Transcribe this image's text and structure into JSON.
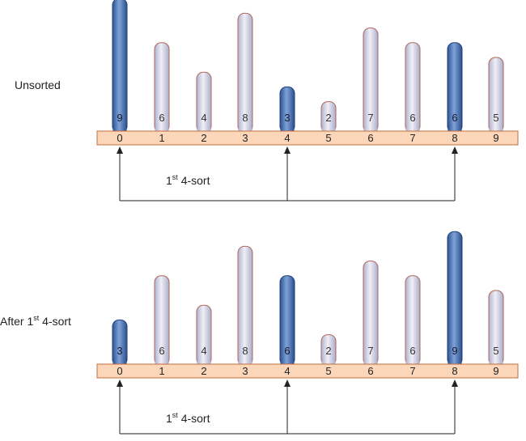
{
  "panels": [
    {
      "label": "Unsorted",
      "label_sup": "",
      "label_suffix": "",
      "values": [
        9,
        6,
        4,
        8,
        3,
        2,
        7,
        6,
        6,
        5
      ],
      "highlighted": [
        0,
        4,
        8
      ],
      "indices": [
        "0",
        "1",
        "2",
        "3",
        "4",
        "5",
        "6",
        "7",
        "8",
        "9"
      ],
      "arrow_label": "1",
      "arrow_label_sup": "st",
      "arrow_label_suffix": " 4-sort"
    },
    {
      "label": "After 1",
      "label_sup": "st",
      "label_suffix": " 4-sort",
      "values": [
        3,
        6,
        4,
        8,
        6,
        2,
        7,
        6,
        9,
        5
      ],
      "highlighted": [
        0,
        4,
        8
      ],
      "indices": [
        "0",
        "1",
        "2",
        "3",
        "4",
        "5",
        "6",
        "7",
        "8",
        "9"
      ],
      "arrow_label": "1",
      "arrow_label_sup": "st",
      "arrow_label_suffix": " 4-sort"
    }
  ],
  "colors": {
    "bar_highlight_top": "#6a8fc8",
    "bar_highlight": "#3a63a8",
    "bar_highlight_edge": "#1f3f78",
    "bar_normal_light": "#e8e4f0",
    "bar_normal": "#b9bfd6",
    "bar_normal_edge": "#b0665a",
    "base_fill": "#fbd6b8",
    "base_edge": "#c0703e",
    "text": "#222222",
    "arrow": "#222222"
  }
}
